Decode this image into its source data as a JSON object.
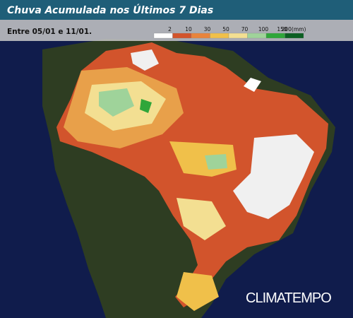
{
  "header": {
    "title": "Chuva Acumulada nos Últimos 7 Dias",
    "period": "Entre 05/01 e 11/01."
  },
  "legend": {
    "labels": [
      "2",
      "10",
      "30",
      "50",
      "70",
      "100",
      "150",
      "200(mm)"
    ],
    "colors": [
      "#ffffff",
      "#d2542c",
      "#e8843c",
      "#f0c04a",
      "#f3df92",
      "#9fd39a",
      "#2fa63a",
      "#0b5f22"
    ]
  },
  "logo": "CLIMATEMPO"
}
